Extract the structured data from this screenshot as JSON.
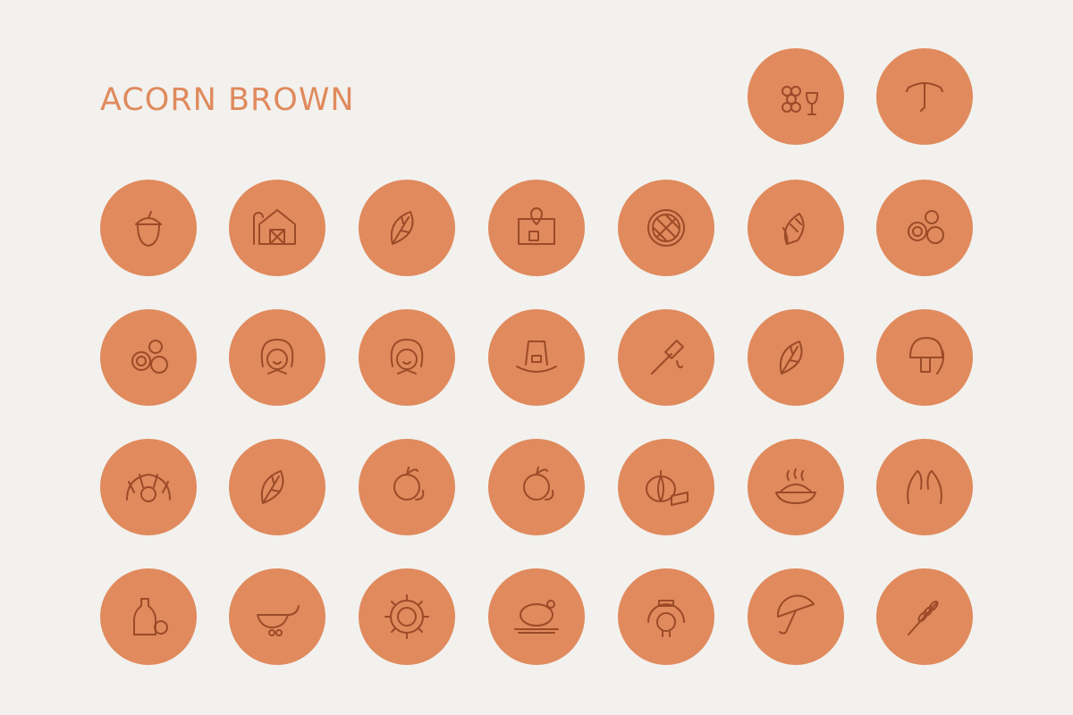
{
  "header": {
    "title": "ACORN BROWN"
  }
}
